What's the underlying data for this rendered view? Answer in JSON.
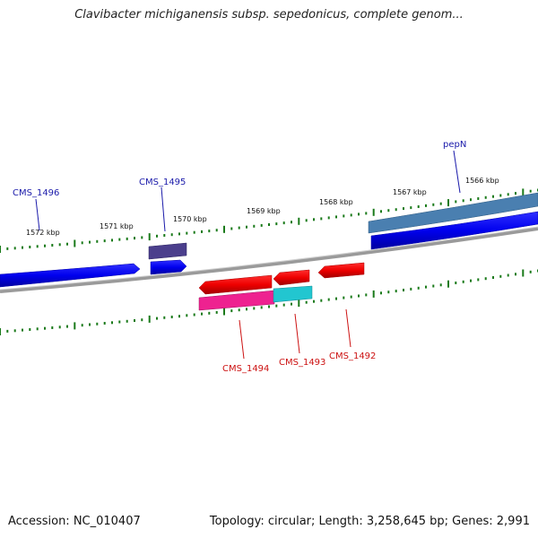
{
  "title": "Clavibacter michiganensis subsp. sepedonicus, complete genom...",
  "accession": "Accession: NC_010407",
  "summary": "Topology: circular; Length: 3,258,645 bp; Genes: 2,991",
  "colors": {
    "backbone": "#7f7f7f",
    "tick": "#1a7a1a",
    "forward_gene": "#0000ee",
    "reverse_gene": "#ee0000",
    "forward_label": "#1a1aaa",
    "reverse_label": "#cc1111",
    "cds_purple": "#4b3f8c",
    "cds_steel": "#4a7fb0",
    "cds_magenta": "#ee2290",
    "cds_cyan": "#22c6d0"
  },
  "scale_labels": [
    "1572 kbp",
    "1571 kbp",
    "1570 kbp",
    "1569 kbp",
    "1568 kbp",
    "1567 kbp",
    "1566 kbp"
  ],
  "gene_labels": {
    "cms1496": "CMS_1496",
    "cms1495": "CMS_1495",
    "pepN": "pepN",
    "cms1494": "CMS_1494",
    "cms1493": "CMS_1493",
    "cms1492": "CMS_1492"
  }
}
